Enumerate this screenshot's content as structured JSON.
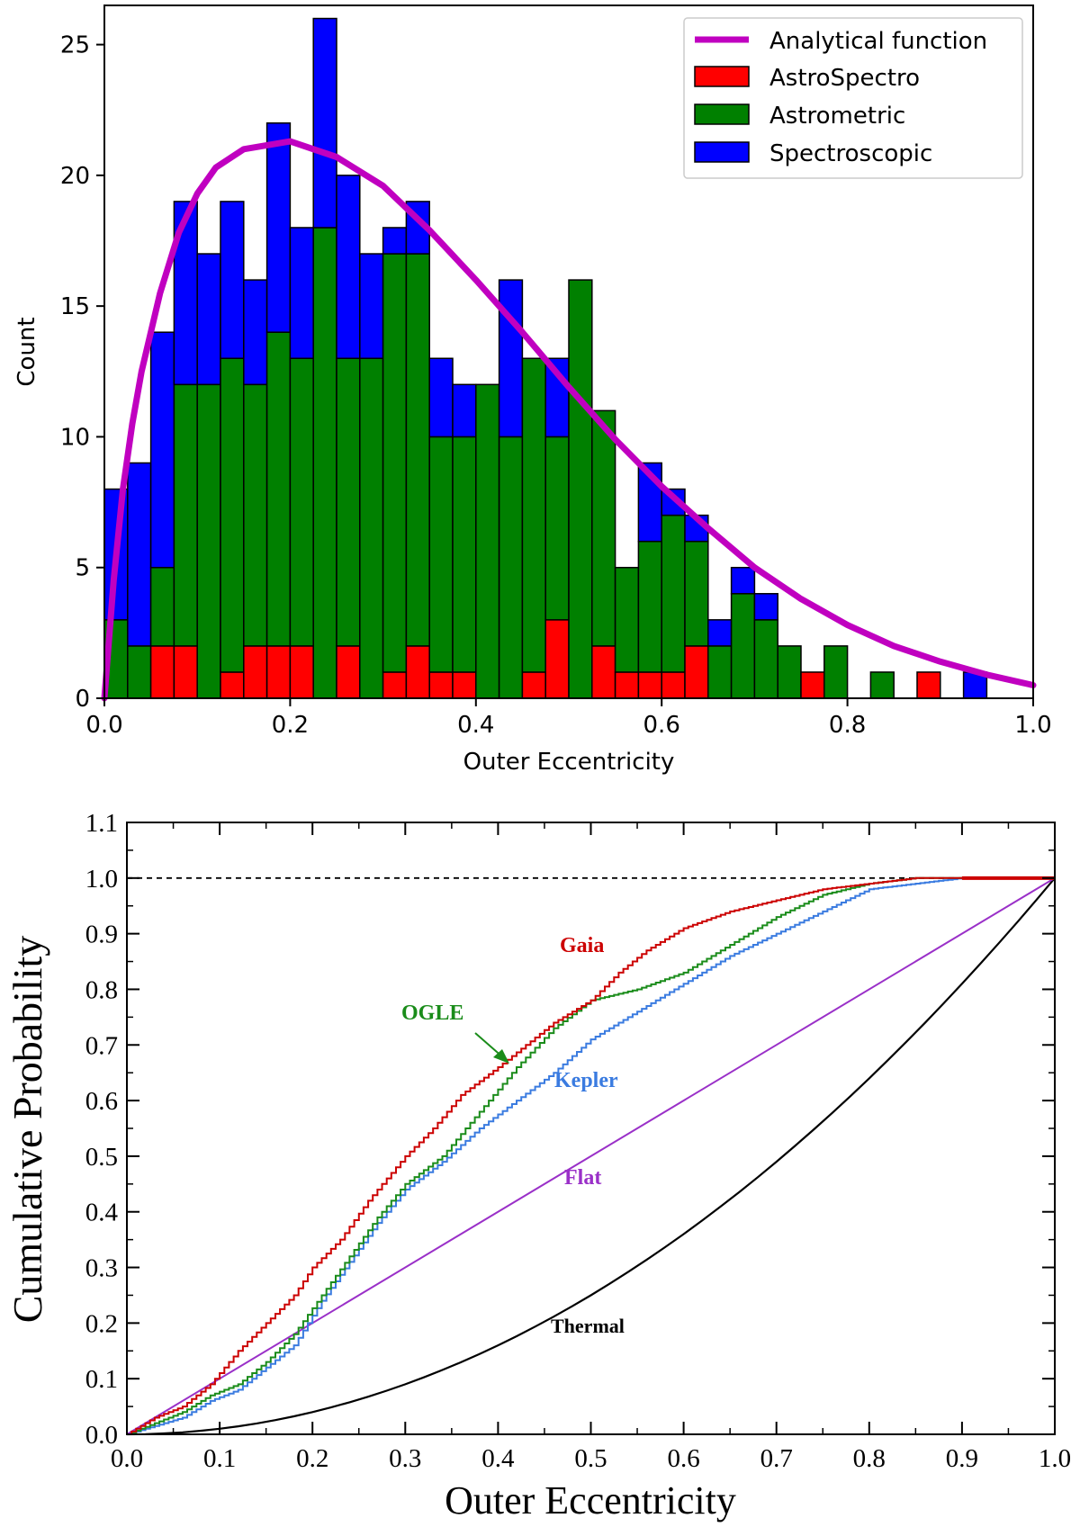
{
  "chart_data": [
    {
      "type": "bar",
      "stacked": true,
      "xlabel": "Outer Eccentricity",
      "ylabel": "Count",
      "xlim": [
        0.0,
        1.0
      ],
      "ylim": [
        0,
        26.5
      ],
      "x_ticks": [
        0.0,
        0.2,
        0.4,
        0.6,
        0.8,
        1.0
      ],
      "x_tick_labels": [
        "0.0",
        "0.2",
        "0.4",
        "0.6",
        "0.8",
        "1.0"
      ],
      "y_ticks": [
        0,
        5,
        10,
        15,
        20,
        25
      ],
      "y_tick_labels": [
        "0",
        "5",
        "10",
        "15",
        "20",
        "25"
      ],
      "legend_position": "top-right",
      "bin_width": 0.025,
      "bin_starts": [
        0.0,
        0.025,
        0.05,
        0.075,
        0.1,
        0.125,
        0.15,
        0.175,
        0.2,
        0.225,
        0.25,
        0.275,
        0.3,
        0.325,
        0.35,
        0.375,
        0.4,
        0.425,
        0.45,
        0.475,
        0.5,
        0.525,
        0.55,
        0.575,
        0.6,
        0.625,
        0.65,
        0.675,
        0.7,
        0.725,
        0.75,
        0.775,
        0.8,
        0.825,
        0.85,
        0.875,
        0.9,
        0.925,
        0.95,
        0.975
      ],
      "series": [
        {
          "name": "AstroSpectro",
          "color": "#ff0000",
          "values": [
            0,
            0,
            2,
            2,
            0,
            1,
            2,
            2,
            2,
            0,
            2,
            0,
            1,
            2,
            1,
            1,
            0,
            0,
            1,
            3,
            0,
            2,
            1,
            1,
            1,
            2,
            0,
            0,
            0,
            0,
            1,
            0,
            0,
            0,
            0,
            1,
            0,
            0,
            0,
            0
          ]
        },
        {
          "name": "Astrometric",
          "color": "#008000",
          "values": [
            3,
            2,
            3,
            10,
            12,
            12,
            10,
            12,
            11,
            18,
            11,
            13,
            16,
            15,
            9,
            9,
            12,
            10,
            12,
            7,
            16,
            9,
            4,
            5,
            6,
            4,
            2,
            4,
            3,
            2,
            0,
            2,
            0,
            1,
            0,
            0,
            0,
            0,
            0,
            0
          ]
        },
        {
          "name": "Spectroscopic",
          "color": "#0000ff",
          "values": [
            5,
            7,
            9,
            7,
            5,
            6,
            4,
            8,
            5,
            8,
            7,
            4,
            1,
            2,
            3,
            2,
            0,
            6,
            0,
            3,
            0,
            0,
            0,
            3,
            1,
            1,
            1,
            1,
            1,
            0,
            0,
            0,
            0,
            0,
            0,
            0,
            0,
            1,
            0,
            0
          ]
        }
      ],
      "overlay_line": {
        "name": "Analytical function",
        "color": "#c000c0",
        "x": [
          0.0,
          0.01,
          0.02,
          0.03,
          0.04,
          0.06,
          0.08,
          0.1,
          0.12,
          0.15,
          0.2,
          0.25,
          0.3,
          0.35,
          0.4,
          0.45,
          0.5,
          0.55,
          0.6,
          0.65,
          0.7,
          0.75,
          0.8,
          0.85,
          0.9,
          0.95,
          1.0
        ],
        "y": [
          0,
          4.5,
          8.0,
          10.5,
          12.5,
          15.5,
          17.8,
          19.3,
          20.3,
          21.0,
          21.3,
          20.7,
          19.6,
          17.9,
          16.0,
          14.0,
          11.9,
          9.9,
          8.1,
          6.5,
          5.0,
          3.8,
          2.8,
          2.0,
          1.4,
          0.9,
          0.5
        ]
      },
      "legend": [
        "Analytical function",
        "AstroSpectro",
        "Astrometric",
        "Spectroscopic"
      ]
    },
    {
      "type": "line",
      "xlabel": "Outer Eccentricity",
      "ylabel": "Cumulative Probability",
      "xlim": [
        0.0,
        1.0
      ],
      "ylim": [
        0.0,
        1.1
      ],
      "x_ticks": [
        0.0,
        0.1,
        0.2,
        0.3,
        0.4,
        0.5,
        0.6,
        0.7,
        0.8,
        0.9,
        1.0
      ],
      "x_tick_labels": [
        "0.0",
        "0.1",
        "0.2",
        "0.3",
        "0.4",
        "0.5",
        "0.6",
        "0.7",
        "0.8",
        "0.9",
        "1.0"
      ],
      "y_ticks": [
        0.0,
        0.1,
        0.2,
        0.3,
        0.4,
        0.5,
        0.6,
        0.7,
        0.8,
        0.9,
        1.0,
        1.1
      ],
      "y_tick_labels": [
        "0.0",
        "0.1",
        "0.2",
        "0.3",
        "0.4",
        "0.5",
        "0.6",
        "0.7",
        "0.8",
        "0.9",
        "1.0",
        "1.1"
      ],
      "reference_line": {
        "y": 1.0,
        "style": "dashed",
        "color": "#000000"
      },
      "series": [
        {
          "name": "Gaia",
          "label": "Gaia",
          "color": "#cc0000",
          "step": true,
          "x": [
            0.0,
            0.03,
            0.06,
            0.09,
            0.12,
            0.15,
            0.18,
            0.2,
            0.23,
            0.26,
            0.3,
            0.33,
            0.36,
            0.4,
            0.43,
            0.46,
            0.5,
            0.53,
            0.56,
            0.6,
            0.65,
            0.7,
            0.75,
            0.8,
            0.85,
            0.9,
            0.95,
            1.0
          ],
          "y": [
            0.0,
            0.03,
            0.05,
            0.09,
            0.15,
            0.2,
            0.25,
            0.3,
            0.35,
            0.42,
            0.5,
            0.55,
            0.61,
            0.66,
            0.7,
            0.74,
            0.78,
            0.83,
            0.87,
            0.91,
            0.94,
            0.96,
            0.98,
            0.99,
            1.0,
            1.0,
            1.0,
            1.0
          ]
        },
        {
          "name": "OGLE",
          "label": "OGLE",
          "color": "#1a8c1a",
          "step": true,
          "x": [
            0.0,
            0.03,
            0.06,
            0.09,
            0.12,
            0.15,
            0.18,
            0.21,
            0.24,
            0.27,
            0.3,
            0.34,
            0.38,
            0.42,
            0.46,
            0.5,
            0.55,
            0.6,
            0.65,
            0.7,
            0.75,
            0.8,
            0.85,
            0.9,
            0.95,
            1.0
          ],
          "y": [
            0.0,
            0.02,
            0.04,
            0.07,
            0.09,
            0.13,
            0.18,
            0.25,
            0.32,
            0.39,
            0.45,
            0.5,
            0.58,
            0.66,
            0.73,
            0.78,
            0.8,
            0.83,
            0.88,
            0.93,
            0.97,
            0.99,
            1.0,
            1.0,
            1.0,
            1.0
          ]
        },
        {
          "name": "Kepler",
          "label": "Kepler",
          "color": "#3a7be0",
          "step": true,
          "x": [
            0.0,
            0.03,
            0.06,
            0.09,
            0.12,
            0.15,
            0.18,
            0.21,
            0.24,
            0.27,
            0.3,
            0.34,
            0.38,
            0.42,
            0.46,
            0.5,
            0.55,
            0.6,
            0.65,
            0.7,
            0.75,
            0.8,
            0.85,
            0.9,
            0.95,
            1.0
          ],
          "y": [
            0.0,
            0.015,
            0.03,
            0.06,
            0.08,
            0.12,
            0.16,
            0.24,
            0.31,
            0.38,
            0.44,
            0.49,
            0.55,
            0.6,
            0.65,
            0.71,
            0.76,
            0.81,
            0.86,
            0.9,
            0.94,
            0.98,
            0.99,
            1.0,
            1.0,
            1.0
          ]
        },
        {
          "name": "Flat",
          "label": "Flat",
          "color": "#9a30c8",
          "step": false,
          "x": [
            0.0,
            1.0
          ],
          "y": [
            0.0,
            1.0
          ]
        },
        {
          "name": "Thermal",
          "label": "Thermal",
          "color": "#000000",
          "step": false,
          "x": [
            0.0,
            0.1,
            0.2,
            0.3,
            0.4,
            0.5,
            0.6,
            0.7,
            0.8,
            0.9,
            1.0
          ],
          "y": [
            0.0,
            0.01,
            0.04,
            0.09,
            0.16,
            0.25,
            0.36,
            0.49,
            0.64,
            0.81,
            1.0
          ]
        }
      ]
    }
  ]
}
